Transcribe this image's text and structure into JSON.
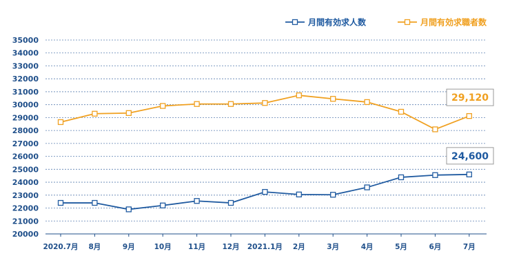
{
  "chart_data": {
    "type": "line",
    "title": "",
    "xlabel": "",
    "ylabel": "",
    "categories": [
      "2020.7月",
      "8月",
      "9月",
      "10月",
      "11月",
      "12月",
      "2021.1月",
      "2月",
      "3月",
      "4月",
      "5月",
      "6月",
      "7月"
    ],
    "y_ticks": [
      "35000",
      "34000",
      "33000",
      "32000",
      "31000",
      "30000",
      "29000",
      "28000",
      "27000",
      "26000",
      "25000",
      "24000",
      "23000",
      "22000",
      "21000",
      "20000"
    ],
    "ylim": [
      20000,
      35000
    ],
    "grid": true,
    "legend_position": "top-right",
    "series": [
      {
        "name": "月間有効求人数",
        "color": "#1f5aa0",
        "values": [
          22400,
          22400,
          21900,
          22200,
          22550,
          22400,
          23250,
          23050,
          23030,
          23600,
          24380,
          24550,
          24600
        ],
        "callout": "24,600"
      },
      {
        "name": "月間有効求職者数",
        "color": "#f0a020",
        "values": [
          28650,
          29300,
          29350,
          29900,
          30050,
          30050,
          30130,
          30720,
          30450,
          30200,
          29450,
          28090,
          29120
        ],
        "callout": "29,120"
      }
    ]
  }
}
